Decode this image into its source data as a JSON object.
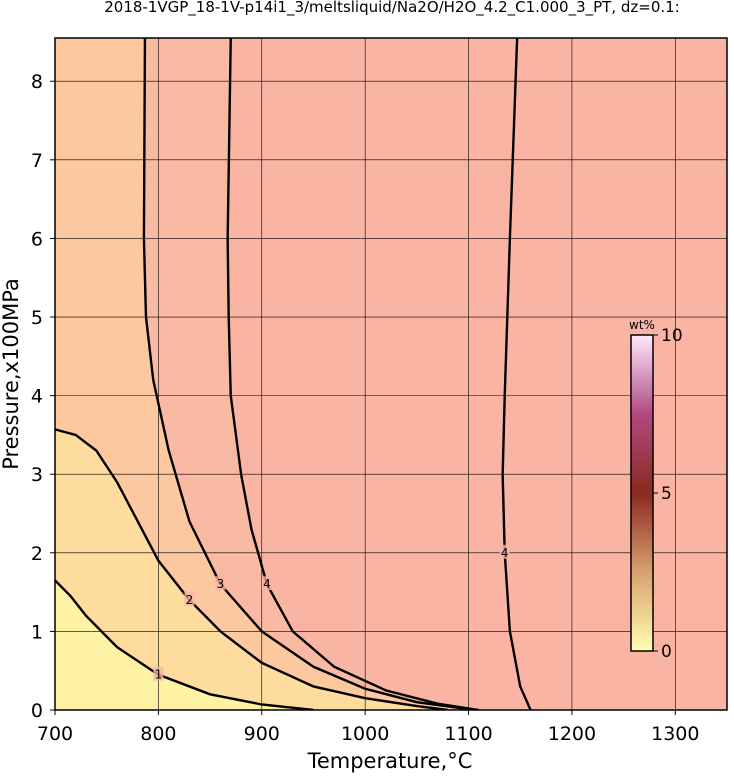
{
  "chart_data": {
    "type": "contour",
    "title": "2018-1VGP_18-1V-p14i1_3/meltsliquid/Na2O/H2O_4.2_C1.000_3_PT, dz=0.1:",
    "x_label": "Temperature,°C",
    "y_label": "Pressure,x100MPa",
    "xlim": [
      700,
      1350
    ],
    "ylim": [
      0,
      8.55
    ],
    "xticks": [
      700,
      800,
      900,
      1000,
      1100,
      1200,
      1300
    ],
    "yticks": [
      0,
      1,
      2,
      3,
      4,
      5,
      6,
      7,
      8
    ],
    "grid": true,
    "background": "#f9b4a3",
    "levels": [
      {
        "level": 4,
        "color": "#fab9a2",
        "x": [
          870,
          867,
          868,
          870,
          880,
          890,
          905,
          930,
          970,
          1020,
          1070,
          1110
        ],
        "y": [
          8.55,
          6,
          5,
          4,
          3,
          2.3,
          1.6,
          1.0,
          0.55,
          0.25,
          0.08,
          0
        ]
      },
      {
        "level": 3,
        "color": "#fcc8a0",
        "x": [
          787,
          786,
          788,
          795,
          810,
          830,
          860,
          900,
          950,
          1000,
          1050,
          1100
        ],
        "y": [
          8.55,
          6,
          5,
          4.2,
          3.3,
          2.4,
          1.6,
          1.0,
          0.55,
          0.27,
          0.1,
          0.01
        ]
      },
      {
        "level": 2,
        "color": "#fddc9e",
        "x": [
          700,
          720,
          740,
          760,
          780,
          800,
          830,
          860,
          900,
          950,
          1000,
          1050,
          1080
        ],
        "y": [
          3.57,
          3.5,
          3.3,
          2.9,
          2.4,
          1.9,
          1.4,
          1.0,
          0.6,
          0.3,
          0.15,
          0.05,
          0
        ]
      },
      {
        "level": 1,
        "color": "#fef2a4",
        "x": [
          700,
          715,
          730,
          760,
          800,
          850,
          900,
          950
        ],
        "y": [
          1.65,
          1.45,
          1.2,
          0.8,
          0.45,
          0.2,
          0.07,
          0
        ]
      },
      {
        "level": 4,
        "x": [
          1147,
          1140,
          1135,
          1133,
          1135,
          1140,
          1150,
          1160
        ],
        "y": [
          8.55,
          6,
          4,
          3,
          2,
          1,
          0.3,
          0
        ]
      }
    ],
    "colorbar": {
      "label": "wt%",
      "clim": [
        0,
        10
      ],
      "ticks": [
        0,
        5,
        10
      ]
    }
  }
}
